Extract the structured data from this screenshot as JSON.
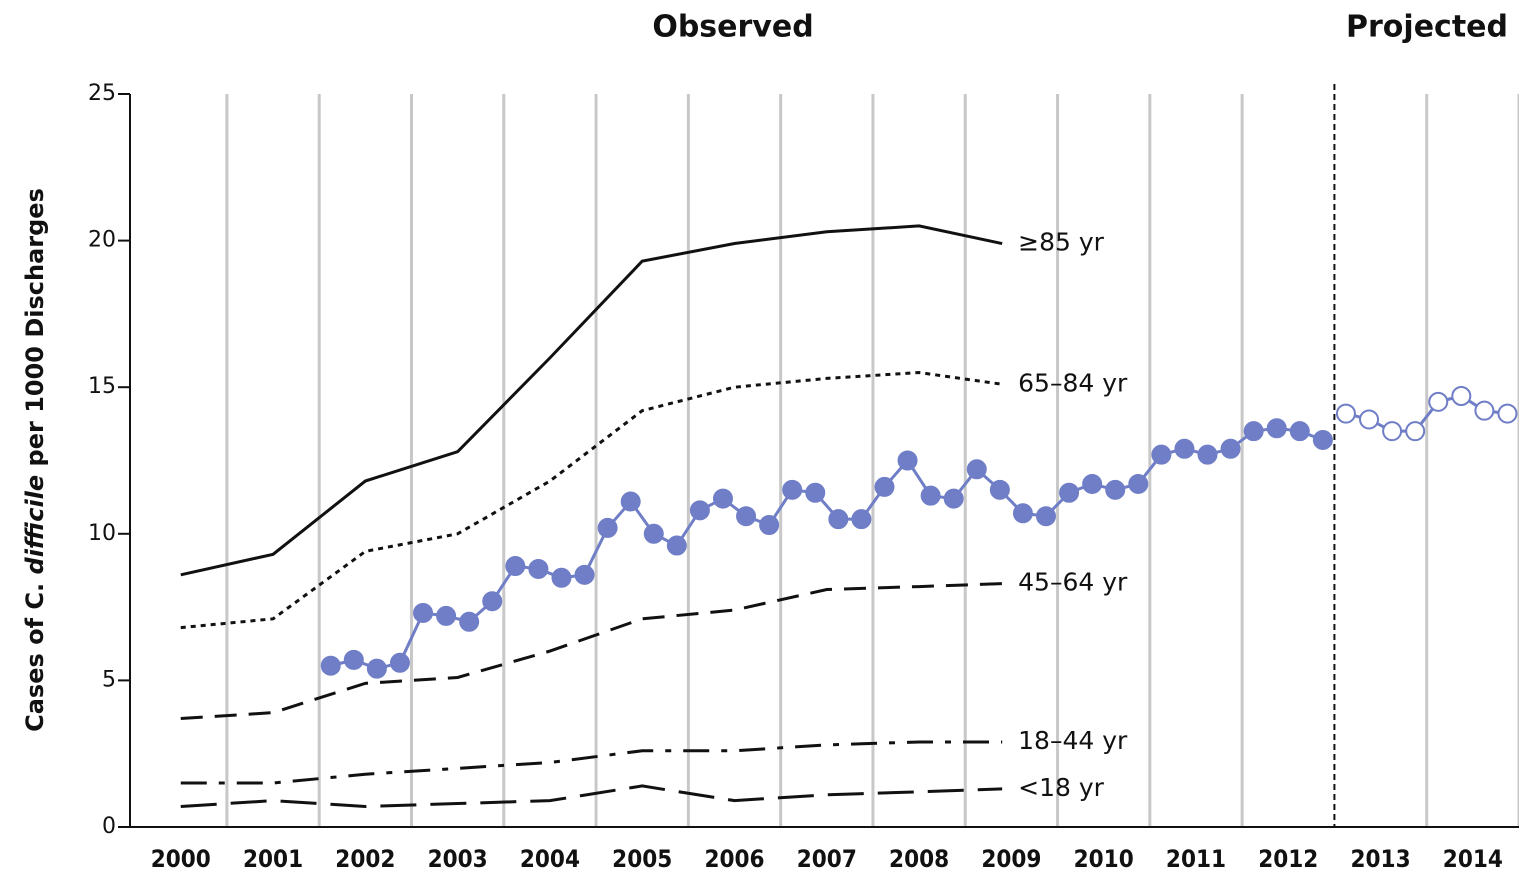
{
  "chart_data": {
    "type": "line",
    "annotations": [
      "Observed",
      "Projected"
    ],
    "ylabel": [
      "Cases of C. ",
      "difficile",
      " per 1000 Discharges"
    ],
    "xlim": [
      1999.95,
      2015.0
    ],
    "ylim": [
      0,
      25
    ],
    "yticks": [
      0,
      5,
      10,
      15,
      20,
      25
    ],
    "xticks": [
      {
        "value": 2000.5,
        "label": "2000"
      },
      {
        "value": 2001.5,
        "label": "2001"
      },
      {
        "value": 2002.5,
        "label": "2002"
      },
      {
        "value": 2003.5,
        "label": "2003"
      },
      {
        "value": 2004.5,
        "label": "2004"
      },
      {
        "value": 2005.5,
        "label": "2005"
      },
      {
        "value": 2006.5,
        "label": "2006"
      },
      {
        "value": 2007.5,
        "label": "2007"
      },
      {
        "value": 2008.5,
        "label": "2008"
      },
      {
        "value": 2009.5,
        "label": "2009"
      },
      {
        "value": 2010.5,
        "label": "2010"
      },
      {
        "value": 2011.5,
        "label": "2011"
      },
      {
        "value": 2012.5,
        "label": "2012"
      },
      {
        "value": 2013.5,
        "label": "2013"
      },
      {
        "value": 2014.5,
        "label": "2014"
      }
    ],
    "xgrid": [
      2001,
      2002,
      2003,
      2004,
      2005,
      2006,
      2007,
      2008,
      2009,
      2010,
      2011,
      2012,
      2014,
      2015
    ],
    "divider": 2013,
    "series": [
      {
        "name": "≥85 yr",
        "color": "#111111",
        "dash": "solid",
        "x": [
          2000.5,
          2001.5,
          2002.5,
          2003.5,
          2004.5,
          2005.5,
          2006.5,
          2007.5,
          2008.5,
          2009.4
        ],
        "values": [
          8.6,
          9.3,
          11.8,
          12.8,
          16.0,
          19.3,
          19.9,
          20.3,
          20.5,
          19.9
        ]
      },
      {
        "name": "65–84 yr",
        "color": "#111111",
        "dash": "dotted",
        "x": [
          2000.5,
          2001.5,
          2002.5,
          2003.5,
          2004.5,
          2005.5,
          2006.5,
          2007.5,
          2008.5,
          2009.4
        ],
        "values": [
          6.8,
          7.1,
          9.4,
          10.0,
          11.8,
          14.2,
          15.0,
          15.3,
          15.5,
          15.1
        ]
      },
      {
        "name": "45–64 yr",
        "color": "#111111",
        "dash": "dashed",
        "x": [
          2000.5,
          2001.5,
          2002.5,
          2003.5,
          2004.5,
          2005.5,
          2006.5,
          2007.5,
          2008.5,
          2009.4
        ],
        "values": [
          3.7,
          3.9,
          4.9,
          5.1,
          6.0,
          7.1,
          7.4,
          8.1,
          8.2,
          8.3
        ]
      },
      {
        "name": "18–44 yr",
        "color": "#111111",
        "dash": "dashdot",
        "x": [
          2000.5,
          2001.5,
          2002.5,
          2003.5,
          2004.5,
          2005.5,
          2006.5,
          2007.5,
          2008.5,
          2009.4
        ],
        "values": [
          1.5,
          1.5,
          1.8,
          2.0,
          2.2,
          2.6,
          2.6,
          2.8,
          2.9,
          2.9
        ]
      },
      {
        "name": "<18 yr",
        "color": "#111111",
        "dash": "longdash",
        "x": [
          2000.5,
          2001.5,
          2002.5,
          2003.5,
          2004.5,
          2005.5,
          2006.5,
          2007.5,
          2008.5,
          2009.4
        ],
        "values": [
          0.7,
          0.9,
          0.7,
          0.8,
          0.9,
          1.4,
          0.9,
          1.1,
          1.2,
          1.3
        ]
      },
      {
        "color": "#6f7ec6",
        "dash": "solid",
        "marker": "filled",
        "x": [
          2002.125,
          2002.375,
          2002.625,
          2002.875,
          2003.125,
          2003.375,
          2003.625,
          2003.875,
          2004.125,
          2004.375,
          2004.625,
          2004.875,
          2005.125,
          2005.375,
          2005.625,
          2005.875,
          2006.125,
          2006.375,
          2006.625,
          2006.875,
          2007.125,
          2007.375,
          2007.625,
          2007.875,
          2008.125,
          2008.375,
          2008.625,
          2008.875,
          2009.125,
          2009.375,
          2009.625,
          2009.875,
          2010.125,
          2010.375,
          2010.625,
          2010.875,
          2011.125,
          2011.375,
          2011.625,
          2011.875,
          2012.125,
          2012.375,
          2012.625,
          2012.875
        ],
        "values": [
          5.5,
          5.7,
          5.4,
          5.6,
          7.3,
          7.2,
          7.0,
          7.7,
          8.9,
          8.8,
          8.5,
          8.6,
          10.2,
          11.1,
          10.0,
          9.6,
          10.8,
          11.2,
          10.6,
          10.3,
          11.5,
          11.4,
          10.5,
          10.5,
          11.6,
          12.5,
          11.3,
          11.2,
          12.2,
          11.5,
          10.7,
          10.6,
          11.4,
          11.7,
          11.5,
          11.7,
          12.7,
          12.9,
          12.7,
          12.9,
          13.5,
          13.6,
          13.5,
          13.2
        ]
      },
      {
        "color": "#6f7ec6",
        "dash": "solid",
        "marker": "open",
        "x": [
          2013.125,
          2013.375,
          2013.625,
          2013.875,
          2014.125,
          2014.375,
          2014.625,
          2014.875
        ],
        "values": [
          14.1,
          13.9,
          13.5,
          13.5,
          14.5,
          14.7,
          14.2,
          14.1
        ]
      }
    ]
  }
}
